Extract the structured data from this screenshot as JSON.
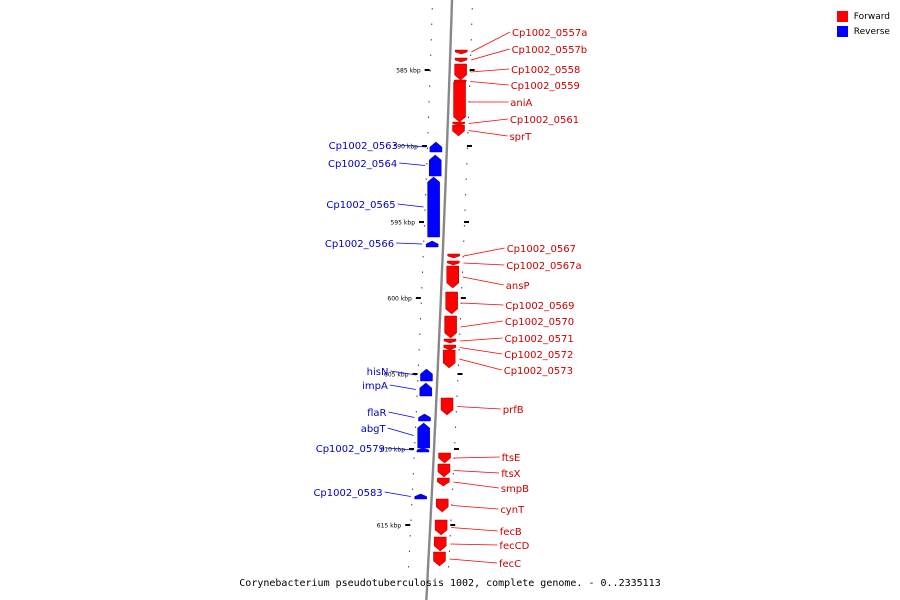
{
  "legend": {
    "forward_label": "Forward",
    "reverse_label": "Reverse",
    "forward_color": "#ff0000",
    "reverse_color": "#0000ff"
  },
  "caption": "Corynebacterium pseudotuberculosis 1002, complete genome. - 0..2335113",
  "scale": {
    "unit": "kbp",
    "ticks": [
      "585 kbp",
      "590 kbp",
      "595 kbp",
      "600 kbp",
      "605 kbp",
      "610 kbp",
      "615 kbp"
    ]
  },
  "genes": [
    {
      "name": "Cp1002_0557a",
      "strand": "forward"
    },
    {
      "name": "Cp1002_0557b",
      "strand": "forward"
    },
    {
      "name": "Cp1002_0558",
      "strand": "forward"
    },
    {
      "name": "Cp1002_0559",
      "strand": "forward"
    },
    {
      "name": "aniA",
      "strand": "forward"
    },
    {
      "name": "Cp1002_0561",
      "strand": "forward"
    },
    {
      "name": "sprT",
      "strand": "forward"
    },
    {
      "name": "Cp1002_0563",
      "strand": "reverse"
    },
    {
      "name": "Cp1002_0564",
      "strand": "reverse"
    },
    {
      "name": "Cp1002_0565",
      "strand": "reverse"
    },
    {
      "name": "Cp1002_0566",
      "strand": "reverse"
    },
    {
      "name": "Cp1002_0567",
      "strand": "forward"
    },
    {
      "name": "Cp1002_0567a",
      "strand": "forward"
    },
    {
      "name": "ansP",
      "strand": "forward"
    },
    {
      "name": "Cp1002_0569",
      "strand": "forward"
    },
    {
      "name": "Cp1002_0570",
      "strand": "forward"
    },
    {
      "name": "Cp1002_0571",
      "strand": "forward"
    },
    {
      "name": "Cp1002_0572",
      "strand": "forward"
    },
    {
      "name": "Cp1002_0573",
      "strand": "forward"
    },
    {
      "name": "hisN",
      "strand": "reverse"
    },
    {
      "name": "impA",
      "strand": "reverse"
    },
    {
      "name": "prfB",
      "strand": "forward"
    },
    {
      "name": "flaR",
      "strand": "reverse"
    },
    {
      "name": "abgT",
      "strand": "reverse"
    },
    {
      "name": "Cp1002_0579",
      "strand": "reverse"
    },
    {
      "name": "ftsE",
      "strand": "forward"
    },
    {
      "name": "ftsX",
      "strand": "forward"
    },
    {
      "name": "smpB",
      "strand": "forward"
    },
    {
      "name": "Cp1002_0583",
      "strand": "reverse"
    },
    {
      "name": "cynT",
      "strand": "forward"
    },
    {
      "name": "fecB",
      "strand": "forward"
    },
    {
      "name": "fecCD",
      "strand": "forward"
    },
    {
      "name": "fecC",
      "strand": "forward"
    }
  ]
}
